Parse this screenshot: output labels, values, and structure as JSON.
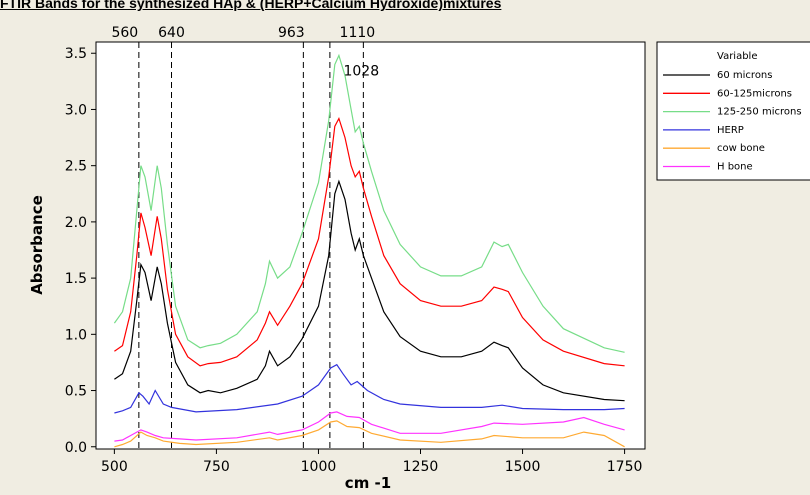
{
  "chart_data": {
    "type": "line",
    "title": "FTIR Bands for the synthesized HAp & (HERP+Calcium Hydroxide)mixtures",
    "xlabel": "cm -1",
    "ylabel": "Absorbance",
    "xlim": [
      455,
      1800
    ],
    "ylim": [
      -0.02,
      3.6
    ],
    "xticks": [
      500,
      750,
      1000,
      1250,
      1500,
      1750
    ],
    "yticks": [
      0.0,
      0.5,
      1.0,
      1.5,
      2.0,
      2.5,
      3.0,
      3.5
    ],
    "reference_lines": [
      560,
      640,
      963,
      1028,
      1110
    ],
    "legend": {
      "title": "Variable",
      "position": "right-top"
    },
    "annotations": [
      {
        "text": "1028",
        "x": 1105,
        "y": 3.3
      }
    ],
    "series": [
      {
        "name": "60 microns",
        "color": "#000000",
        "points": [
          [
            500,
            0.6
          ],
          [
            520,
            0.65
          ],
          [
            540,
            0.85
          ],
          [
            555,
            1.3
          ],
          [
            565,
            1.62
          ],
          [
            575,
            1.55
          ],
          [
            590,
            1.3
          ],
          [
            605,
            1.6
          ],
          [
            615,
            1.45
          ],
          [
            630,
            1.1
          ],
          [
            650,
            0.75
          ],
          [
            680,
            0.55
          ],
          [
            710,
            0.48
          ],
          [
            730,
            0.5
          ],
          [
            760,
            0.48
          ],
          [
            800,
            0.52
          ],
          [
            850,
            0.6
          ],
          [
            870,
            0.72
          ],
          [
            880,
            0.85
          ],
          [
            900,
            0.72
          ],
          [
            930,
            0.8
          ],
          [
            960,
            0.96
          ],
          [
            1000,
            1.25
          ],
          [
            1025,
            1.7
          ],
          [
            1040,
            2.25
          ],
          [
            1050,
            2.36
          ],
          [
            1065,
            2.2
          ],
          [
            1080,
            1.9
          ],
          [
            1090,
            1.75
          ],
          [
            1100,
            1.85
          ],
          [
            1110,
            1.7
          ],
          [
            1130,
            1.5
          ],
          [
            1160,
            1.2
          ],
          [
            1200,
            0.98
          ],
          [
            1250,
            0.85
          ],
          [
            1300,
            0.8
          ],
          [
            1350,
            0.8
          ],
          [
            1400,
            0.85
          ],
          [
            1430,
            0.93
          ],
          [
            1450,
            0.9
          ],
          [
            1465,
            0.88
          ],
          [
            1500,
            0.7
          ],
          [
            1550,
            0.55
          ],
          [
            1600,
            0.48
          ],
          [
            1700,
            0.42
          ],
          [
            1750,
            0.41
          ]
        ]
      },
      {
        "name": "60-125microns",
        "color": "#ff0000",
        "points": [
          [
            500,
            0.85
          ],
          [
            520,
            0.9
          ],
          [
            540,
            1.2
          ],
          [
            555,
            1.7
          ],
          [
            565,
            2.08
          ],
          [
            575,
            1.95
          ],
          [
            590,
            1.7
          ],
          [
            605,
            2.05
          ],
          [
            615,
            1.85
          ],
          [
            630,
            1.4
          ],
          [
            650,
            1.0
          ],
          [
            680,
            0.8
          ],
          [
            710,
            0.72
          ],
          [
            730,
            0.74
          ],
          [
            760,
            0.75
          ],
          [
            800,
            0.8
          ],
          [
            850,
            0.95
          ],
          [
            870,
            1.1
          ],
          [
            880,
            1.2
          ],
          [
            900,
            1.08
          ],
          [
            930,
            1.25
          ],
          [
            960,
            1.45
          ],
          [
            1000,
            1.85
          ],
          [
            1025,
            2.4
          ],
          [
            1040,
            2.85
          ],
          [
            1050,
            2.92
          ],
          [
            1065,
            2.75
          ],
          [
            1080,
            2.5
          ],
          [
            1090,
            2.4
          ],
          [
            1100,
            2.45
          ],
          [
            1110,
            2.3
          ],
          [
            1130,
            2.05
          ],
          [
            1160,
            1.7
          ],
          [
            1200,
            1.45
          ],
          [
            1250,
            1.3
          ],
          [
            1300,
            1.25
          ],
          [
            1350,
            1.25
          ],
          [
            1400,
            1.3
          ],
          [
            1430,
            1.42
          ],
          [
            1450,
            1.4
          ],
          [
            1465,
            1.38
          ],
          [
            1500,
            1.15
          ],
          [
            1550,
            0.95
          ],
          [
            1600,
            0.85
          ],
          [
            1700,
            0.74
          ],
          [
            1750,
            0.72
          ]
        ]
      },
      {
        "name": "125-250 microns",
        "color": "#77dd88",
        "points": [
          [
            500,
            1.1
          ],
          [
            520,
            1.2
          ],
          [
            540,
            1.5
          ],
          [
            555,
            2.1
          ],
          [
            565,
            2.5
          ],
          [
            575,
            2.4
          ],
          [
            590,
            2.1
          ],
          [
            605,
            2.5
          ],
          [
            615,
            2.3
          ],
          [
            630,
            1.8
          ],
          [
            650,
            1.25
          ],
          [
            680,
            0.95
          ],
          [
            710,
            0.88
          ],
          [
            730,
            0.9
          ],
          [
            760,
            0.92
          ],
          [
            800,
            1.0
          ],
          [
            850,
            1.2
          ],
          [
            870,
            1.45
          ],
          [
            880,
            1.65
          ],
          [
            900,
            1.5
          ],
          [
            930,
            1.6
          ],
          [
            960,
            1.9
          ],
          [
            1000,
            2.35
          ],
          [
            1025,
            2.9
          ],
          [
            1040,
            3.4
          ],
          [
            1050,
            3.48
          ],
          [
            1065,
            3.3
          ],
          [
            1080,
            3.0
          ],
          [
            1090,
            2.8
          ],
          [
            1100,
            2.85
          ],
          [
            1110,
            2.7
          ],
          [
            1130,
            2.45
          ],
          [
            1160,
            2.1
          ],
          [
            1200,
            1.8
          ],
          [
            1250,
            1.6
          ],
          [
            1300,
            1.52
          ],
          [
            1350,
            1.52
          ],
          [
            1400,
            1.6
          ],
          [
            1430,
            1.82
          ],
          [
            1450,
            1.78
          ],
          [
            1465,
            1.8
          ],
          [
            1500,
            1.55
          ],
          [
            1550,
            1.25
          ],
          [
            1600,
            1.05
          ],
          [
            1700,
            0.88
          ],
          [
            1750,
            0.84
          ]
        ]
      },
      {
        "name": "HERP",
        "color": "#3333dd",
        "points": [
          [
            500,
            0.3
          ],
          [
            520,
            0.32
          ],
          [
            540,
            0.35
          ],
          [
            560,
            0.48
          ],
          [
            570,
            0.45
          ],
          [
            585,
            0.38
          ],
          [
            600,
            0.5
          ],
          [
            620,
            0.38
          ],
          [
            640,
            0.35
          ],
          [
            700,
            0.31
          ],
          [
            800,
            0.33
          ],
          [
            900,
            0.38
          ],
          [
            960,
            0.45
          ],
          [
            1000,
            0.55
          ],
          [
            1030,
            0.7
          ],
          [
            1045,
            0.73
          ],
          [
            1060,
            0.65
          ],
          [
            1080,
            0.55
          ],
          [
            1095,
            0.58
          ],
          [
            1120,
            0.5
          ],
          [
            1160,
            0.42
          ],
          [
            1200,
            0.38
          ],
          [
            1300,
            0.35
          ],
          [
            1400,
            0.35
          ],
          [
            1450,
            0.37
          ],
          [
            1500,
            0.34
          ],
          [
            1600,
            0.33
          ],
          [
            1700,
            0.33
          ],
          [
            1750,
            0.34
          ]
        ]
      },
      {
        "name": "cow bone",
        "color": "#ffaa33",
        "points": [
          [
            500,
            0.0
          ],
          [
            520,
            0.02
          ],
          [
            540,
            0.05
          ],
          [
            565,
            0.13
          ],
          [
            580,
            0.1
          ],
          [
            600,
            0.08
          ],
          [
            620,
            0.05
          ],
          [
            660,
            0.03
          ],
          [
            700,
            0.02
          ],
          [
            800,
            0.04
          ],
          [
            880,
            0.08
          ],
          [
            900,
            0.06
          ],
          [
            960,
            0.1
          ],
          [
            1000,
            0.15
          ],
          [
            1030,
            0.22
          ],
          [
            1045,
            0.23
          ],
          [
            1070,
            0.18
          ],
          [
            1100,
            0.17
          ],
          [
            1130,
            0.12
          ],
          [
            1200,
            0.06
          ],
          [
            1300,
            0.04
          ],
          [
            1400,
            0.07
          ],
          [
            1430,
            0.1
          ],
          [
            1500,
            0.08
          ],
          [
            1600,
            0.08
          ],
          [
            1650,
            0.13
          ],
          [
            1700,
            0.1
          ],
          [
            1750,
            0.0
          ]
        ]
      },
      {
        "name": "H bone",
        "color": "#ff33ff",
        "points": [
          [
            500,
            0.05
          ],
          [
            520,
            0.06
          ],
          [
            540,
            0.1
          ],
          [
            565,
            0.15
          ],
          [
            580,
            0.13
          ],
          [
            600,
            0.1
          ],
          [
            620,
            0.08
          ],
          [
            660,
            0.07
          ],
          [
            700,
            0.06
          ],
          [
            800,
            0.08
          ],
          [
            880,
            0.13
          ],
          [
            900,
            0.11
          ],
          [
            960,
            0.15
          ],
          [
            1000,
            0.22
          ],
          [
            1030,
            0.3
          ],
          [
            1045,
            0.31
          ],
          [
            1070,
            0.27
          ],
          [
            1100,
            0.26
          ],
          [
            1130,
            0.2
          ],
          [
            1200,
            0.12
          ],
          [
            1300,
            0.12
          ],
          [
            1400,
            0.18
          ],
          [
            1430,
            0.21
          ],
          [
            1500,
            0.2
          ],
          [
            1600,
            0.22
          ],
          [
            1650,
            0.26
          ],
          [
            1700,
            0.2
          ],
          [
            1750,
            0.15
          ]
        ]
      }
    ]
  }
}
